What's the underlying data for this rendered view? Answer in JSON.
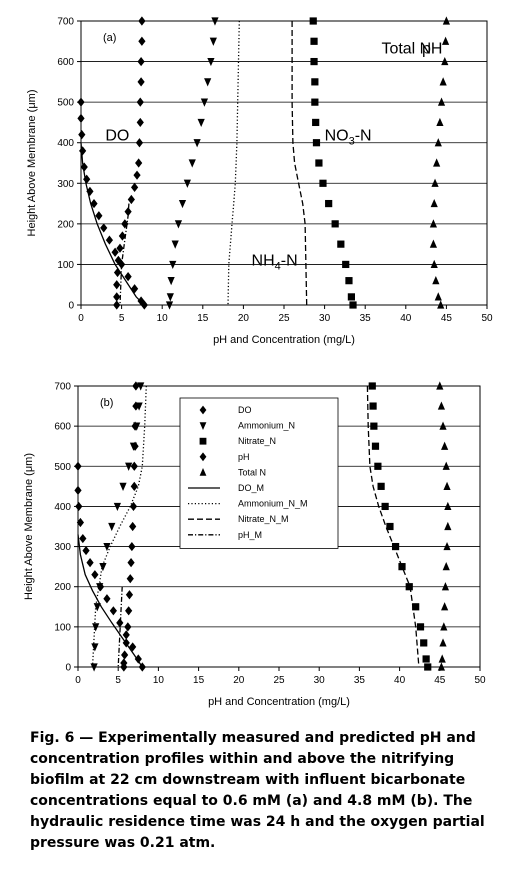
{
  "chart_data": [
    {
      "type": "scatter",
      "panel": "(a)",
      "xlabel": "pH and Concentration (mg/L)",
      "ylabel": "Height Above Membrane (μm)",
      "xlim": [
        0,
        50
      ],
      "ylim": [
        0,
        700
      ],
      "xticks": [
        "0",
        "5",
        "10",
        "15",
        "20",
        "25",
        "30",
        "35",
        "40",
        "45",
        "50"
      ],
      "yticks": [
        "0",
        "100",
        "200",
        "300",
        "400",
        "500",
        "600",
        "700"
      ],
      "grid": "horizontal",
      "annotations": [
        {
          "text": "pH",
          "x": 42,
          "y": 635
        },
        {
          "text": "DO",
          "x": 3,
          "y": 420
        },
        {
          "text": "NO",
          "sub": "3",
          "tail": "-N",
          "x": 30,
          "y": 420
        },
        {
          "text": "NH",
          "sub": "4",
          "tail": "-N",
          "x": 21,
          "y": 112
        },
        {
          "text": "Total N",
          "x": 37,
          "y": 635
        }
      ],
      "series": [
        {
          "key": "DO",
          "marker": "diamond",
          "x": [
            0,
            0,
            0.1,
            0.2,
            0.4,
            0.7,
            1.1,
            1.6,
            2.2,
            2.8,
            3.5,
            4.2,
            5.0,
            5.8,
            6.6,
            7.4,
            7.8
          ],
          "y": [
            500,
            460,
            420,
            380,
            340,
            310,
            280,
            250,
            220,
            190,
            160,
            130,
            100,
            70,
            40,
            10,
            0
          ]
        },
        {
          "key": "pH",
          "marker": "diamond",
          "x": [
            7.5,
            7.5,
            7.4,
            7.4,
            7.3,
            7.3,
            7.2,
            7.1,
            6.9,
            6.6,
            6.2,
            5.8,
            5.4,
            5.1,
            4.8,
            4.6,
            4.5,
            4.4,
            4.4,
            4.4
          ],
          "y": [
            700,
            650,
            600,
            550,
            500,
            450,
            400,
            350,
            320,
            290,
            260,
            230,
            200,
            170,
            140,
            110,
            80,
            50,
            20,
            0
          ]
        },
        {
          "key": "NH4-N",
          "marker": "triangle-down",
          "x": [
            16.5,
            16.3,
            16.0,
            15.6,
            15.2,
            14.8,
            14.3,
            13.7,
            13.1,
            12.5,
            12.0,
            11.6,
            11.3,
            11.1,
            11.0,
            10.9
          ],
          "y": [
            700,
            650,
            600,
            550,
            500,
            450,
            400,
            350,
            300,
            250,
            200,
            150,
            100,
            60,
            20,
            0
          ]
        },
        {
          "key": "NO3-N",
          "marker": "square",
          "x": [
            28.6,
            28.7,
            28.7,
            28.8,
            28.8,
            28.9,
            29.0,
            29.3,
            29.8,
            30.5,
            31.3,
            32.0,
            32.6,
            33.0,
            33.3,
            33.5
          ],
          "y": [
            700,
            650,
            600,
            550,
            500,
            450,
            400,
            350,
            300,
            250,
            200,
            150,
            100,
            60,
            20,
            0
          ]
        },
        {
          "key": "Total N",
          "marker": "triangle-up",
          "x": [
            45.0,
            44.9,
            44.8,
            44.6,
            44.4,
            44.2,
            44.0,
            43.8,
            43.6,
            43.5,
            43.4,
            43.4,
            43.5,
            43.7,
            44.0,
            44.3
          ],
          "y": [
            700,
            650,
            600,
            550,
            500,
            450,
            400,
            350,
            300,
            250,
            200,
            150,
            100,
            60,
            20,
            0
          ]
        },
        {
          "key": "DO_M",
          "line": "solid",
          "x": [
            0,
            0.2,
            0.6,
            1.2,
            2.0,
            3.0,
            4.2,
            5.5,
            6.8,
            7.8
          ],
          "y": [
            400,
            350,
            300,
            250,
            200,
            150,
            100,
            60,
            20,
            0
          ]
        },
        {
          "key": "Ammonium_N_M",
          "line": "dotted",
          "x": [
            19.5,
            19.4,
            19.3,
            19.2,
            19.0,
            18.8,
            18.6,
            18.4,
            18.2,
            18.1
          ],
          "y": [
            700,
            600,
            500,
            400,
            300,
            250,
            200,
            150,
            100,
            0
          ]
        },
        {
          "key": "Nitrate_N_M",
          "line": "dashed",
          "x": [
            26.0,
            26.0,
            26.0,
            26.1,
            26.3,
            26.8,
            27.3,
            27.6,
            27.7,
            27.8
          ],
          "y": [
            700,
            600,
            500,
            400,
            350,
            300,
            250,
            200,
            100,
            0
          ]
        },
        {
          "key": "pH_M",
          "line": "dashdot",
          "x": [
            5.9,
            5.8,
            5.6,
            5.4,
            5.2,
            5.0,
            4.9,
            4.8
          ],
          "y": [
            250,
            220,
            190,
            160,
            130,
            100,
            50,
            0
          ]
        }
      ]
    },
    {
      "type": "scatter",
      "panel": "(b)",
      "xlabel": "pH and Concentration (mg/L)",
      "ylabel": "Height Above Membrane (μm)",
      "xlim": [
        0,
        50
      ],
      "ylim": [
        0,
        700
      ],
      "xticks": [
        "0",
        "5",
        "10",
        "15",
        "20",
        "25",
        "30",
        "35",
        "40",
        "45",
        "50"
      ],
      "yticks": [
        "0",
        "100",
        "200",
        "300",
        "400",
        "500",
        "600",
        "700"
      ],
      "grid": "horizontal",
      "legend": {
        "placement": "top-center",
        "entries": [
          {
            "label": "DO",
            "marker": "diamond"
          },
          {
            "label": "Ammonium_N",
            "marker": "triangle-down"
          },
          {
            "label": "Nitrate_N",
            "marker": "square"
          },
          {
            "label": "pH",
            "marker": "diamond"
          },
          {
            "label": "Total N",
            "marker": "triangle-up"
          },
          {
            "label": "DO_M",
            "line": "solid"
          },
          {
            "label": "Ammonium_N_M",
            "line": "dotted"
          },
          {
            "label": "Nitrate_N_M",
            "line": "dashed"
          },
          {
            "label": "pH_M",
            "line": "dashdot"
          }
        ]
      },
      "series": [
        {
          "key": "DO",
          "marker": "diamond",
          "x": [
            0,
            0,
            0.1,
            0.3,
            0.6,
            1.0,
            1.5,
            2.1,
            2.8,
            3.6,
            4.4,
            5.2,
            6.0,
            6.8,
            7.5,
            8.0
          ],
          "y": [
            500,
            440,
            400,
            360,
            320,
            290,
            260,
            230,
            200,
            170,
            140,
            110,
            80,
            50,
            20,
            0
          ]
        },
        {
          "key": "Ammonium_N",
          "marker": "triangle-down",
          "x": [
            7.8,
            7.6,
            7.3,
            6.9,
            6.3,
            5.6,
            4.9,
            4.2,
            3.6,
            3.1,
            2.7,
            2.4,
            2.2,
            2.1,
            2.0
          ],
          "y": [
            700,
            650,
            600,
            550,
            500,
            450,
            400,
            350,
            300,
            250,
            200,
            150,
            100,
            50,
            0
          ]
        },
        {
          "key": "Nitrate_N",
          "marker": "square",
          "x": [
            36.6,
            36.7,
            36.8,
            37.0,
            37.3,
            37.7,
            38.2,
            38.8,
            39.5,
            40.3,
            41.2,
            42.0,
            42.6,
            43.0,
            43.3,
            43.5
          ],
          "y": [
            700,
            650,
            600,
            550,
            500,
            450,
            400,
            350,
            300,
            250,
            200,
            150,
            100,
            60,
            20,
            0
          ]
        },
        {
          "key": "pH",
          "marker": "diamond",
          "x": [
            7.2,
            7.2,
            7.1,
            7.1,
            7.0,
            7.0,
            6.9,
            6.8,
            6.7,
            6.6,
            6.5,
            6.4,
            6.3,
            6.2,
            6.0,
            5.8,
            5.7,
            5.7
          ],
          "y": [
            700,
            650,
            600,
            550,
            500,
            450,
            400,
            350,
            300,
            260,
            220,
            180,
            140,
            100,
            60,
            30,
            10,
            0
          ]
        },
        {
          "key": "Total N",
          "marker": "triangle-up",
          "x": [
            45.0,
            45.2,
            45.4,
            45.6,
            45.8,
            45.9,
            46.0,
            46.0,
            45.9,
            45.8,
            45.7,
            45.6,
            45.5,
            45.4,
            45.3,
            45.2
          ],
          "y": [
            700,
            650,
            600,
            550,
            500,
            450,
            400,
            350,
            300,
            250,
            200,
            150,
            100,
            60,
            20,
            0
          ]
        },
        {
          "key": "DO_M",
          "line": "solid",
          "x": [
            0,
            0.3,
            0.9,
            1.8,
            2.9,
            4.2,
            5.6,
            7.0,
            8.0
          ],
          "y": [
            330,
            280,
            230,
            190,
            150,
            110,
            70,
            30,
            0
          ]
        },
        {
          "key": "Ammonium_N_M",
          "line": "dotted",
          "x": [
            8.5,
            8.3,
            8.0,
            7.5,
            6.5,
            5.2,
            4.0,
            3.0,
            2.2,
            1.8
          ],
          "y": [
            700,
            600,
            500,
            450,
            400,
            350,
            300,
            250,
            150,
            0
          ]
        },
        {
          "key": "Nitrate_N_M",
          "line": "dashed",
          "x": [
            36.0,
            36.1,
            36.3,
            36.7,
            37.4,
            38.3,
            39.3,
            40.3,
            41.3,
            42.0,
            42.4
          ],
          "y": [
            700,
            600,
            500,
            450,
            400,
            350,
            300,
            250,
            200,
            100,
            0
          ]
        },
        {
          "key": "pH_M",
          "line": "dashdot",
          "x": [
            5.5,
            5.4,
            5.3,
            5.2,
            5.1,
            5.0
          ],
          "y": [
            200,
            160,
            120,
            80,
            40,
            0
          ]
        }
      ]
    }
  ],
  "caption": "Fig. 6 — Experimentally measured and predicted pH and concentration profiles within and above the nitrifying biofilm at 22 cm downstream with influent bicarbonate concentrations equal to 0.6 mM (a) and 4.8 mM (b). The hydraulic residence time was 24 h and the oxygen partial pressure was 0.21 atm."
}
